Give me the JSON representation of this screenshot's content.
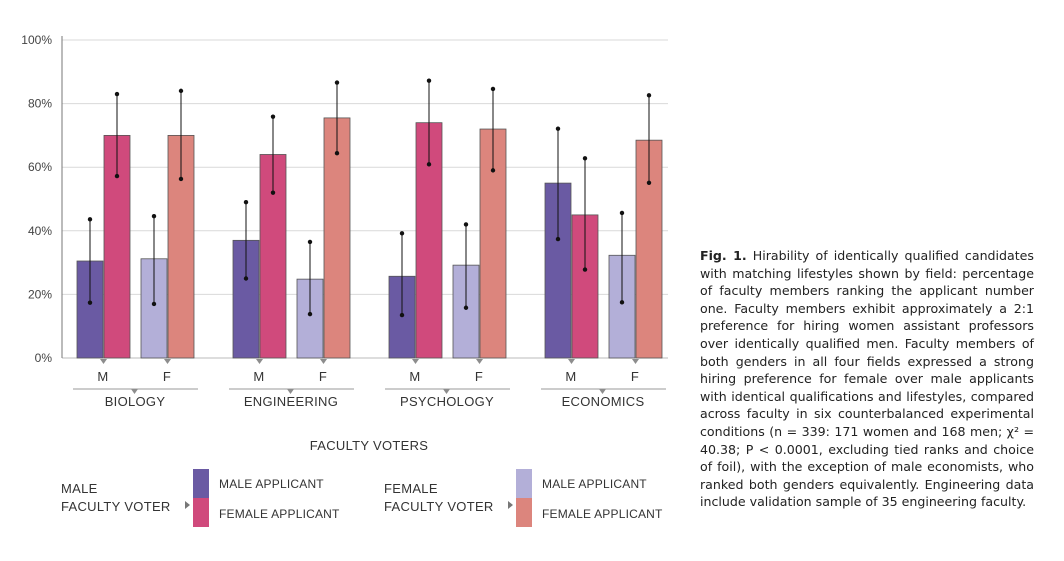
{
  "caption": {
    "label": "Fig. 1.",
    "text": "Hirability of identically qualified candidates with matching lifestyles shown by field: percentage of faculty members ranking the applicant number one. Faculty members exhibit approximately a 2:1 preference for hiring women assistant professors over identically qualified men. Faculty members of both genders in all four fields expressed a strong hiring preference for female over male applicants with identical qualifications and lifestyles, compared across faculty in six counterbalanced experimental conditions (n = 339: 171 women and 168 men; χ² = 40.38; P < 0.0001, excluding tied ranks and choice of foil), with the exception of male economists, who ranked both genders equivalently. Engineering data include validation sample of 35 engineering faculty."
  },
  "legend": {
    "male_group_line1": "MALE",
    "male_group_line2": "FACULTY VOTER",
    "female_group_line1": "FEMALE",
    "female_group_line2": "FACULTY VOTER",
    "male_applicant": "MALE APPLICANT",
    "female_applicant": "FEMALE APPLICANT"
  },
  "colors": {
    "male_voter_male_app": "#6a5aa3",
    "male_voter_female_app": "#d04a7c",
    "female_voter_male_app": "#b3afd8",
    "female_voter_female_app": "#dc857d",
    "grid": "#d9d9d9",
    "axis": "#777777"
  },
  "chart_data": {
    "type": "bar",
    "xlabel": "FACULTY VOTERS",
    "ylabel": "",
    "ylim": [
      0,
      100
    ],
    "yticks": [
      "0%",
      "20%",
      "40%",
      "60%",
      "80%",
      "100%"
    ],
    "grid": true,
    "categories": [
      "BIOLOGY",
      "ENGINEERING",
      "PSYCHOLOGY",
      "ECONOMICS"
    ],
    "voter_labels": [
      "M",
      "F"
    ],
    "series": [
      {
        "name": "MALE APPLICANT",
        "voter": "M",
        "values": [
          30.5,
          37,
          25.7,
          55
        ],
        "err_low": [
          17.4,
          25,
          13.5,
          37.4
        ],
        "err_high": [
          43.6,
          49,
          39.2,
          72.1
        ]
      },
      {
        "name": "FEMALE APPLICANT",
        "voter": "M",
        "values": [
          70,
          64,
          74,
          45
        ],
        "err_low": [
          57.2,
          52,
          60.9,
          27.8
        ],
        "err_high": [
          83,
          75.9,
          87.2,
          62.8
        ]
      },
      {
        "name": "MALE APPLICANT",
        "voter": "F",
        "values": [
          31.2,
          24.8,
          29.2,
          32.3
        ],
        "err_low": [
          17,
          13.8,
          15.8,
          17.5
        ],
        "err_high": [
          44.6,
          36.5,
          42,
          45.6
        ]
      },
      {
        "name": "FEMALE APPLICANT",
        "voter": "F",
        "values": [
          70,
          75.5,
          72,
          68.5
        ],
        "err_low": [
          56.3,
          64.4,
          59,
          55.1
        ],
        "err_high": [
          84,
          86.6,
          84.6,
          82.6
        ]
      }
    ]
  }
}
